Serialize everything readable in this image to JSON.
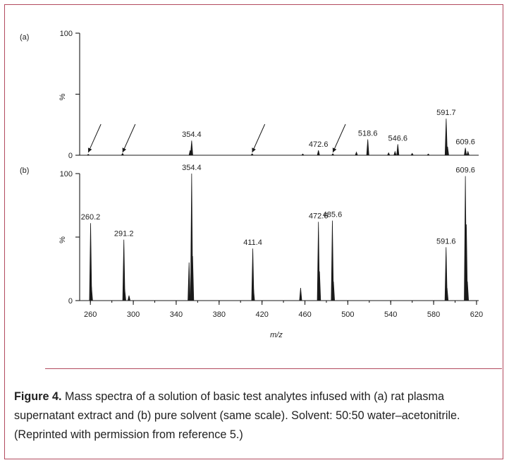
{
  "figure": {
    "caption_label": "Figure 4.",
    "caption_text": "Mass spectra of a solution of basic test analytes infused with (a) rat plasma supernatant extract and (b) pure solvent (same scale). Solvent: 50:50 water–acetonitrile. (Reprinted with permission from reference 5.)"
  },
  "colors": {
    "frame": "#b24a5e",
    "ink": "#1a1a1a"
  },
  "chart_data": [
    {
      "type": "line",
      "panel_label": "(a)",
      "xlabel": "",
      "ylabel": "%",
      "xlim": [
        250,
        622
      ],
      "ylim": [
        0,
        100
      ],
      "yticks": [
        0,
        100
      ],
      "peaks": [
        {
          "mz": 258,
          "y": 0.8
        },
        {
          "mz": 290,
          "y": 1.5
        },
        {
          "mz": 353,
          "y": 4
        },
        {
          "mz": 354.4,
          "y": 12,
          "label": "354.4"
        },
        {
          "mz": 410.8,
          "y": 1.2
        },
        {
          "mz": 458,
          "y": 1
        },
        {
          "mz": 472.6,
          "y": 4,
          "label": "472.6"
        },
        {
          "mz": 486,
          "y": 1.2
        },
        {
          "mz": 508,
          "y": 2.5
        },
        {
          "mz": 518.6,
          "y": 13,
          "label": "518.6"
        },
        {
          "mz": 538,
          "y": 2
        },
        {
          "mz": 544,
          "y": 3
        },
        {
          "mz": 546.6,
          "y": 9,
          "label": "546.6"
        },
        {
          "mz": 560,
          "y": 1.5
        },
        {
          "mz": 575,
          "y": 1
        },
        {
          "mz": 591.7,
          "y": 30,
          "label": "591.7"
        },
        {
          "mz": 593,
          "y": 7
        },
        {
          "mz": 609.6,
          "y": 6,
          "label": "609.6"
        },
        {
          "mz": 612,
          "y": 3
        }
      ],
      "arrows_at_mz": [
        258,
        290,
        410.8,
        486
      ]
    },
    {
      "type": "line",
      "panel_label": "(b)",
      "xlabel": "m/z",
      "ylabel": "%",
      "xlim": [
        250,
        622
      ],
      "ylim": [
        0,
        100
      ],
      "yticks": [
        0,
        100
      ],
      "xticks": [
        260,
        300,
        340,
        380,
        420,
        460,
        500,
        540,
        580,
        620
      ],
      "peaks": [
        {
          "mz": 260.2,
          "y": 61,
          "label": "260.2"
        },
        {
          "mz": 261,
          "y": 11
        },
        {
          "mz": 291.2,
          "y": 48,
          "label": "291.2"
        },
        {
          "mz": 292,
          "y": 9
        },
        {
          "mz": 296,
          "y": 4
        },
        {
          "mz": 352,
          "y": 30
        },
        {
          "mz": 354.4,
          "y": 100,
          "label": "354.4"
        },
        {
          "mz": 355.3,
          "y": 35
        },
        {
          "mz": 411.4,
          "y": 41,
          "label": "411.4"
        },
        {
          "mz": 412,
          "y": 10
        },
        {
          "mz": 456,
          "y": 10
        },
        {
          "mz": 472.6,
          "y": 62,
          "label": "472.6"
        },
        {
          "mz": 473.6,
          "y": 23
        },
        {
          "mz": 485.6,
          "y": 63,
          "label": "485.6"
        },
        {
          "mz": 486.6,
          "y": 15
        },
        {
          "mz": 591.6,
          "y": 42,
          "label": "591.6"
        },
        {
          "mz": 592.5,
          "y": 10
        },
        {
          "mz": 609.6,
          "y": 98,
          "label": "609.6"
        },
        {
          "mz": 610.5,
          "y": 60
        },
        {
          "mz": 611.5,
          "y": 15
        }
      ]
    }
  ]
}
